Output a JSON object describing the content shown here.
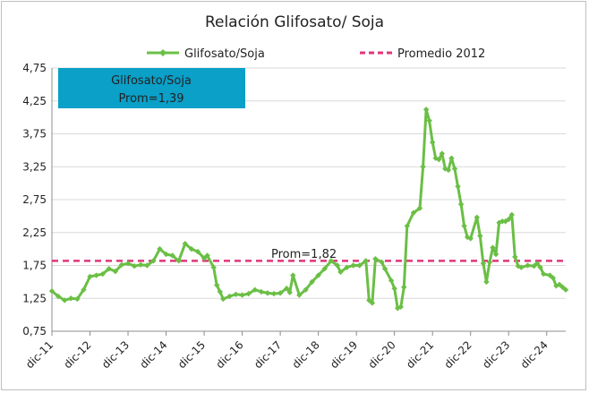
{
  "chart_data": {
    "type": "line",
    "title": "Relación Glifosato/ Soja",
    "xlabel": "",
    "ylabel": "",
    "ylim": [
      0.75,
      4.75
    ],
    "yticks": [
      0.75,
      1.25,
      1.75,
      2.25,
      2.75,
      3.25,
      3.75,
      4.25,
      4.75
    ],
    "ytick_labels": [
      "0,75",
      "1,25",
      "1,75",
      "2,25",
      "2,75",
      "3,25",
      "3,75",
      "4,25",
      "4,75"
    ],
    "x_unit": "month",
    "x_start": "2011-12",
    "x_end": "2025-06",
    "xticks": [
      "dic-11",
      "dic-12",
      "dic-13",
      "dic-14",
      "dic-15",
      "dic-16",
      "dic-17",
      "dic-18",
      "dic-19",
      "dic-20",
      "dic-21",
      "dic-22",
      "dic-23",
      "dic-24"
    ],
    "grid": true,
    "legend": "top",
    "series": [
      {
        "name": "Glifosato/Soja",
        "color": "#6abf45",
        "marker": "diamond",
        "points": [
          [
            "2011-12",
            1.36
          ],
          [
            "2012-02",
            1.28
          ],
          [
            "2012-04",
            1.22
          ],
          [
            "2012-06",
            1.25
          ],
          [
            "2012-08",
            1.24
          ],
          [
            "2012-10",
            1.38
          ],
          [
            "2012-12",
            1.58
          ],
          [
            "2013-02",
            1.6
          ],
          [
            "2013-04",
            1.62
          ],
          [
            "2013-06",
            1.7
          ],
          [
            "2013-08",
            1.66
          ],
          [
            "2013-10",
            1.76
          ],
          [
            "2013-12",
            1.78
          ],
          [
            "2014-02",
            1.74
          ],
          [
            "2014-04",
            1.76
          ],
          [
            "2014-06",
            1.75
          ],
          [
            "2014-08",
            1.82
          ],
          [
            "2014-10",
            2.0
          ],
          [
            "2014-12",
            1.92
          ],
          [
            "2015-02",
            1.9
          ],
          [
            "2015-04",
            1.82
          ],
          [
            "2015-06",
            2.08
          ],
          [
            "2015-08",
            2.0
          ],
          [
            "2015-10",
            1.96
          ],
          [
            "2015-12",
            1.86
          ],
          [
            "2016-01",
            1.9
          ],
          [
            "2016-03",
            1.72
          ],
          [
            "2016-04",
            1.45
          ],
          [
            "2016-05",
            1.35
          ],
          [
            "2016-06",
            1.24
          ],
          [
            "2016-08",
            1.28
          ],
          [
            "2016-10",
            1.31
          ],
          [
            "2016-12",
            1.3
          ],
          [
            "2017-02",
            1.32
          ],
          [
            "2017-04",
            1.38
          ],
          [
            "2017-06",
            1.35
          ],
          [
            "2017-08",
            1.33
          ],
          [
            "2017-10",
            1.32
          ],
          [
            "2017-12",
            1.33
          ],
          [
            "2018-02",
            1.4
          ],
          [
            "2018-03",
            1.34
          ],
          [
            "2018-04",
            1.6
          ],
          [
            "2018-06",
            1.3
          ],
          [
            "2018-08",
            1.38
          ],
          [
            "2018-10",
            1.5
          ],
          [
            "2018-12",
            1.6
          ],
          [
            "2019-02",
            1.7
          ],
          [
            "2019-04",
            1.82
          ],
          [
            "2019-06",
            1.75
          ],
          [
            "2019-07",
            1.65
          ],
          [
            "2019-09",
            1.72
          ],
          [
            "2019-11",
            1.75
          ],
          [
            "2020-01",
            1.75
          ],
          [
            "2020-03",
            1.82
          ],
          [
            "2020-04",
            1.22
          ],
          [
            "2020-05",
            1.18
          ],
          [
            "2020-06",
            1.85
          ],
          [
            "2020-08",
            1.8
          ],
          [
            "2020-09",
            1.7
          ],
          [
            "2020-11",
            1.52
          ],
          [
            "2020-12",
            1.4
          ],
          [
            "2021-01",
            1.1
          ],
          [
            "2021-02",
            1.12
          ],
          [
            "2021-03",
            1.42
          ],
          [
            "2021-04",
            2.35
          ],
          [
            "2021-06",
            2.55
          ],
          [
            "2021-08",
            2.62
          ],
          [
            "2021-09",
            3.25
          ],
          [
            "2021-10",
            4.12
          ],
          [
            "2021-11",
            3.95
          ],
          [
            "2021-12",
            3.62
          ],
          [
            "2022-01",
            3.38
          ],
          [
            "2022-02",
            3.36
          ],
          [
            "2022-03",
            3.45
          ],
          [
            "2022-04",
            3.22
          ],
          [
            "2022-05",
            3.2
          ],
          [
            "2022-06",
            3.38
          ],
          [
            "2022-07",
            3.22
          ],
          [
            "2022-08",
            2.95
          ],
          [
            "2022-09",
            2.68
          ],
          [
            "2022-10",
            2.35
          ],
          [
            "2022-11",
            2.18
          ],
          [
            "2022-12",
            2.16
          ],
          [
            "2023-02",
            2.48
          ],
          [
            "2023-03",
            2.2
          ],
          [
            "2023-04",
            1.78
          ],
          [
            "2023-05",
            1.5
          ],
          [
            "2023-06",
            1.8
          ],
          [
            "2023-07",
            2.02
          ],
          [
            "2023-08",
            1.92
          ],
          [
            "2023-09",
            2.4
          ],
          [
            "2023-10",
            2.42
          ],
          [
            "2023-11",
            2.42
          ],
          [
            "2023-12",
            2.45
          ],
          [
            "2024-01",
            2.52
          ],
          [
            "2024-02",
            1.88
          ],
          [
            "2024-03",
            1.74
          ],
          [
            "2024-04",
            1.72
          ],
          [
            "2024-06",
            1.75
          ],
          [
            "2024-08",
            1.74
          ],
          [
            "2024-09",
            1.78
          ],
          [
            "2024-10",
            1.72
          ],
          [
            "2024-11",
            1.62
          ],
          [
            "2025-01",
            1.6
          ],
          [
            "2025-02",
            1.56
          ],
          [
            "2025-03",
            1.44
          ],
          [
            "2025-04",
            1.46
          ],
          [
            "2025-05",
            1.42
          ],
          [
            "2025-06",
            1.38
          ]
        ]
      },
      {
        "name": "Promedio 2012",
        "color": "#e0357a",
        "style": "dashed",
        "constant": 1.82
      }
    ],
    "annotations": [
      {
        "id": "box",
        "lines": [
          "Glifosato/Soja",
          "Prom=1,39"
        ],
        "background": "#0aa0c8"
      },
      {
        "id": "prom",
        "text": "Prom=1,82"
      }
    ]
  }
}
